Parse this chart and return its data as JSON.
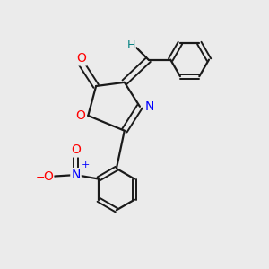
{
  "bg_color": "#ebebeb",
  "bond_color": "#1a1a1a",
  "atom_colors": {
    "O": "#ff0000",
    "N_blue": "#0000ff",
    "H": "#008080",
    "C": "#1a1a1a"
  },
  "figsize": [
    3.0,
    3.0
  ],
  "dpi": 100,
  "xlim": [
    0,
    10
  ],
  "ylim": [
    0,
    10
  ]
}
